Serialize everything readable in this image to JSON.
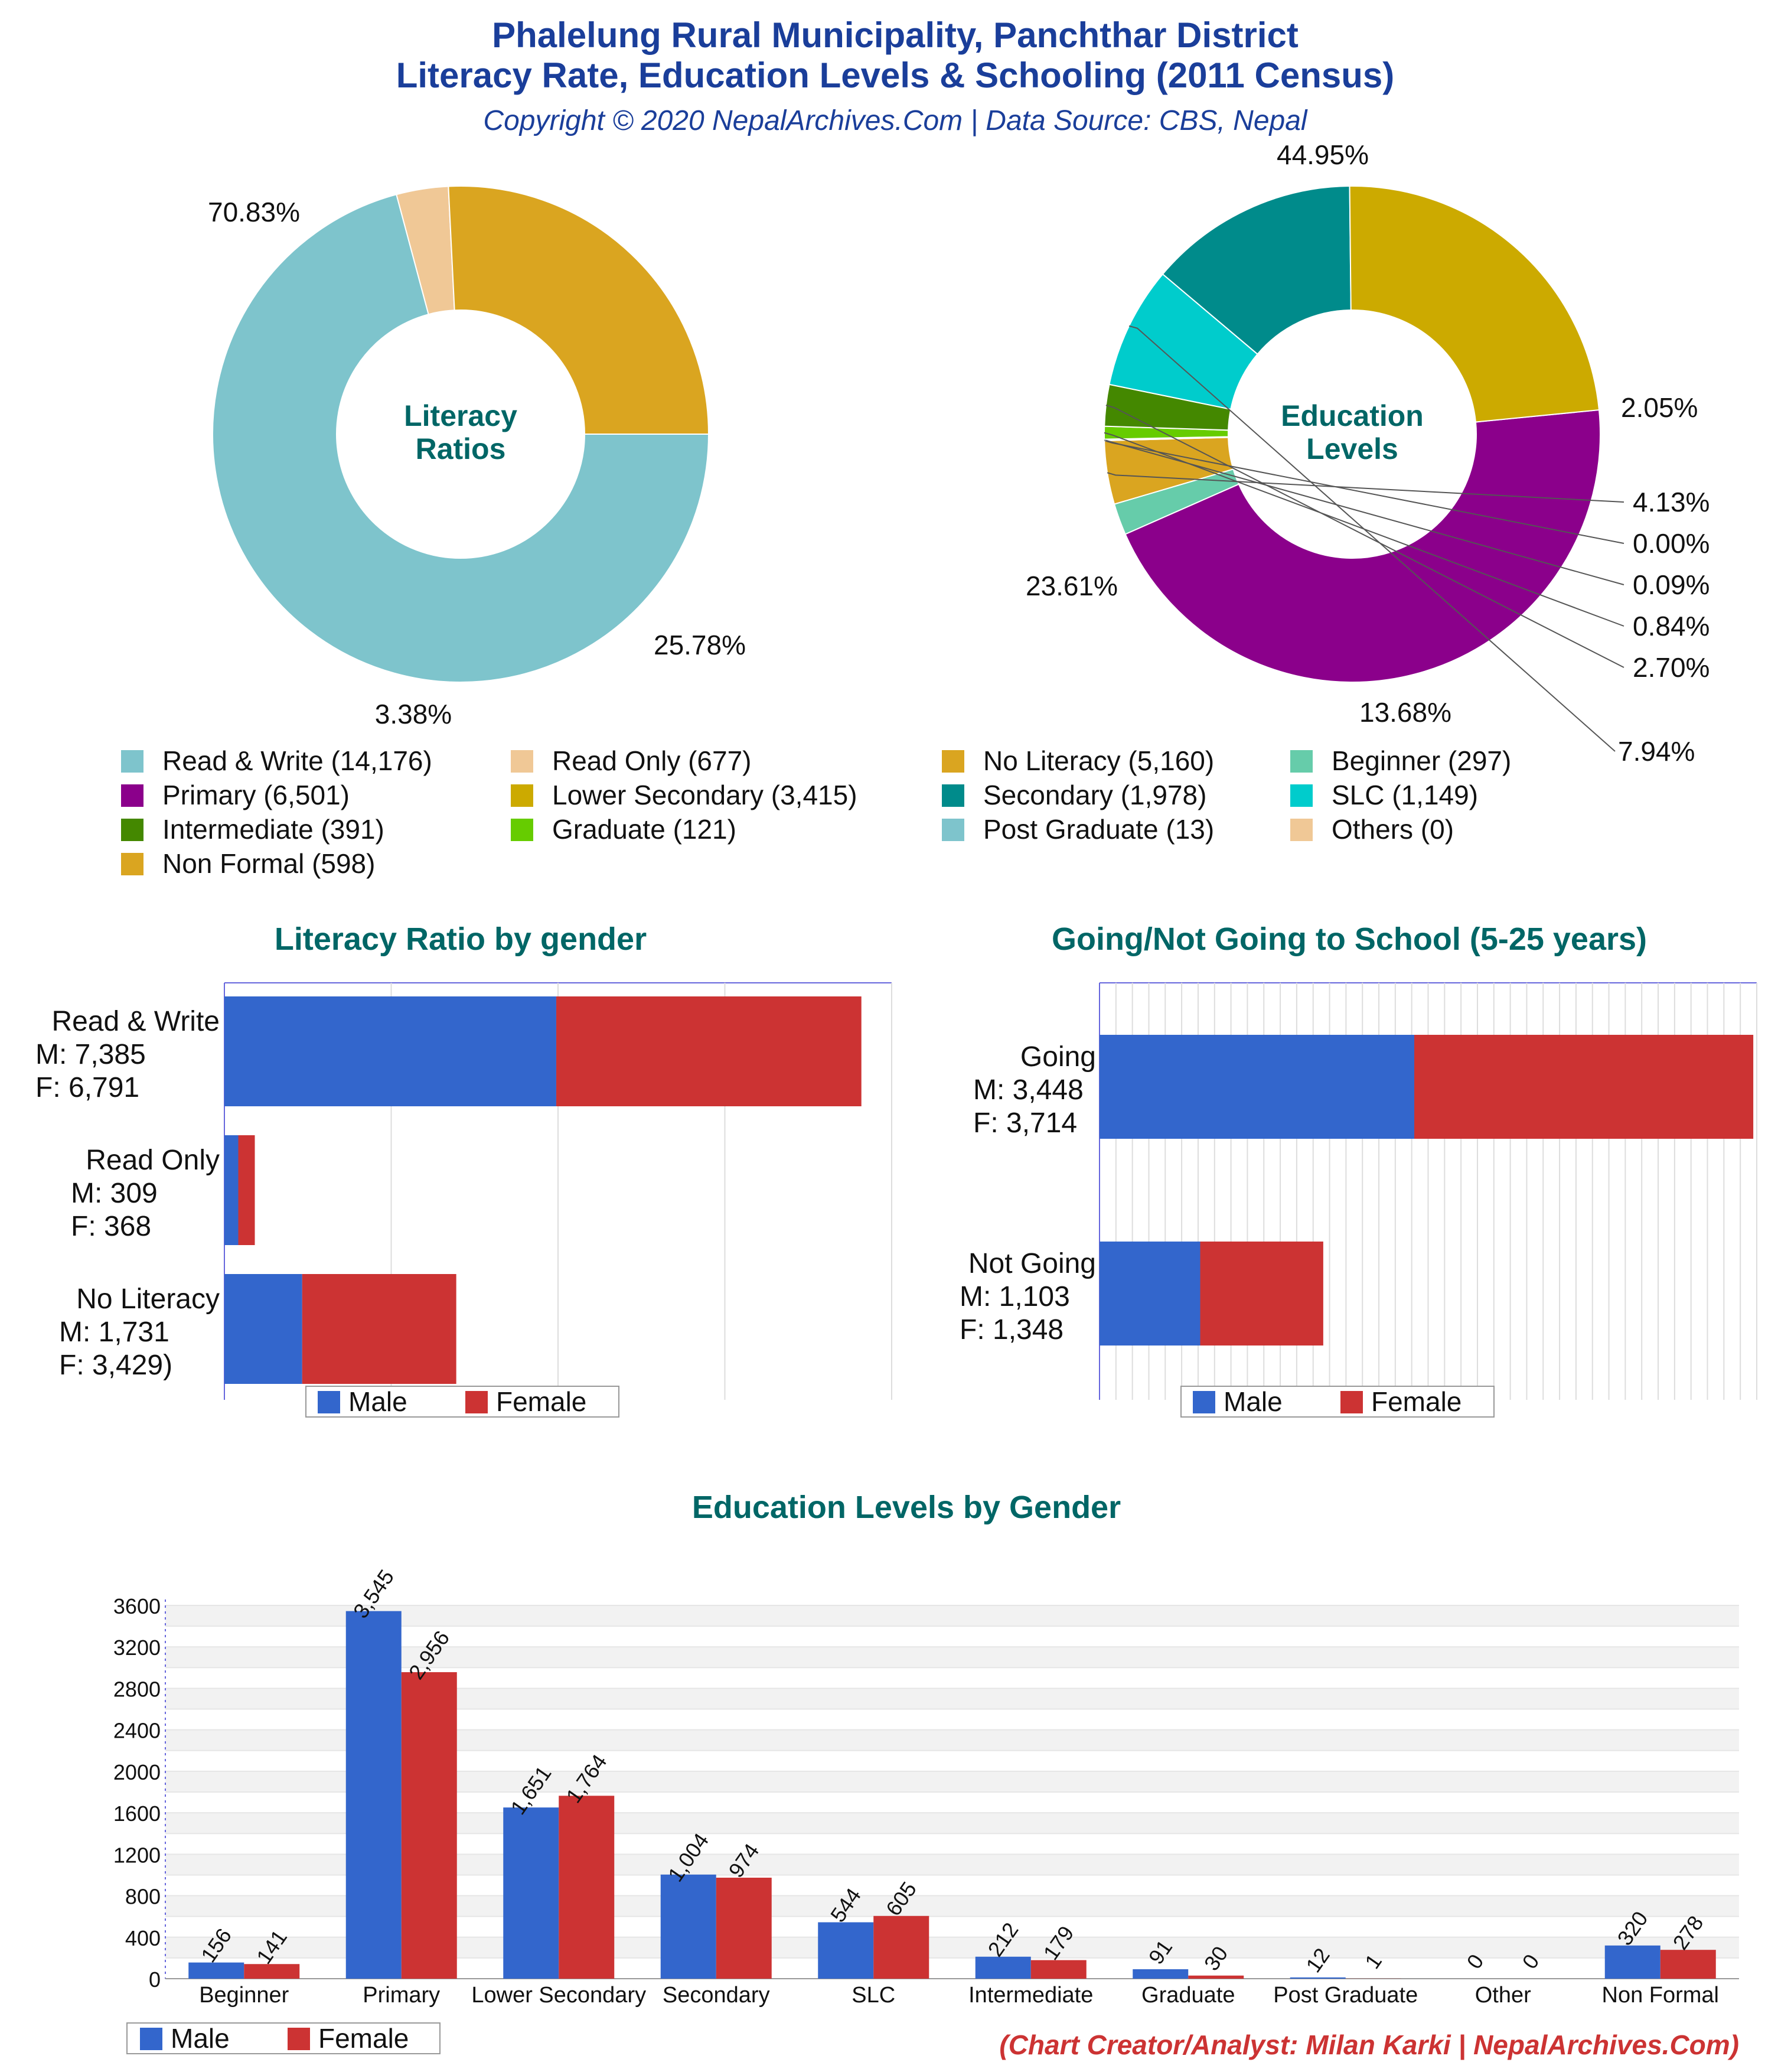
{
  "header": {
    "title_line1": "Phalelung Rural Municipality, Panchthar District",
    "title_line2": "Literacy Rate, Education Levels & Schooling (2011 Census)",
    "copyright": "Copyright © 2020 NepalArchives.Com | Data Source: CBS, Nepal"
  },
  "footer": {
    "credit": "(Chart Creator/Analyst: Milan Karki | NepalArchives.Com)"
  },
  "colors": {
    "title": "#1a3e9a",
    "section_title": "#006666",
    "male": "#3366cc",
    "female": "#cc3333",
    "credit": "#cc3333"
  },
  "legend": {
    "items": [
      {
        "label": "Read & Write (14,176)",
        "color": "#7ec4cc"
      },
      {
        "label": "Read Only (677)",
        "color": "#f0c896"
      },
      {
        "label": "No Literacy (5,160)",
        "color": "#daa520"
      },
      {
        "label": "Beginner (297)",
        "color": "#66ccaa"
      },
      {
        "label": "Primary (6,501)",
        "color": "#8b008b"
      },
      {
        "label": "Lower Secondary (3,415)",
        "color": "#ccaa00"
      },
      {
        "label": "Secondary (1,978)",
        "color": "#008b8b"
      },
      {
        "label": "SLC (1,149)",
        "color": "#00cccc"
      },
      {
        "label": "Intermediate (391)",
        "color": "#448800"
      },
      {
        "label": "Graduate (121)",
        "color": "#66cc00"
      },
      {
        "label": "Post Graduate (13)",
        "color": "#7ec4cc"
      },
      {
        "label": "Others (0)",
        "color": "#f0c896"
      },
      {
        "label": "Non Formal (598)",
        "color": "#daa520"
      }
    ]
  },
  "chart_data": [
    {
      "type": "pie",
      "variant": "donut",
      "center_label": [
        "Literacy",
        "Ratios"
      ],
      "slices": [
        {
          "name": "Read & Write",
          "value": 14176,
          "pct_label": "70.83%",
          "color": "#7ec4cc"
        },
        {
          "name": "Read Only",
          "value": 677,
          "pct_label": "3.38%",
          "color": "#f0c896"
        },
        {
          "name": "No Literacy",
          "value": 5160,
          "pct_label": "25.78%",
          "color": "#daa520"
        }
      ]
    },
    {
      "type": "pie",
      "variant": "donut",
      "center_label": [
        "Education",
        "Levels"
      ],
      "slices": [
        {
          "name": "Primary",
          "value": 6501,
          "pct_label": "44.95%",
          "color": "#8b008b"
        },
        {
          "name": "Beginner",
          "value": 297,
          "pct_label": "2.05%",
          "color": "#66ccaa"
        },
        {
          "name": "Non Formal",
          "value": 598,
          "pct_label": "4.13%",
          "color": "#daa520"
        },
        {
          "name": "Others",
          "value": 0,
          "pct_label": "0.00%",
          "color": "#f0c896"
        },
        {
          "name": "Post Graduate",
          "value": 13,
          "pct_label": "0.09%",
          "color": "#7ec4cc"
        },
        {
          "name": "Graduate",
          "value": 121,
          "pct_label": "0.84%",
          "color": "#66cc00"
        },
        {
          "name": "Intermediate",
          "value": 391,
          "pct_label": "2.70%",
          "color": "#448800"
        },
        {
          "name": "SLC",
          "value": 1149,
          "pct_label": "7.94%",
          "color": "#00cccc"
        },
        {
          "name": "Secondary",
          "value": 1978,
          "pct_label": "13.68%",
          "color": "#008b8b"
        },
        {
          "name": "Lower Secondary",
          "value": 3415,
          "pct_label": "23.61%",
          "color": "#ccaa00"
        }
      ]
    },
    {
      "type": "bar",
      "orientation": "horizontal",
      "stacked": true,
      "title": "Literacy Ratio by gender",
      "categories": [
        "Read & Write",
        "Read Only",
        "No Literacy"
      ],
      "category_labels": [
        [
          "Read & Write",
          "M: 7,385",
          "F: 6,791"
        ],
        [
          "Read Only",
          "M: 309",
          "F: 368"
        ],
        [
          "No Literacy",
          "M: 1,731",
          "F: 3,429)"
        ]
      ],
      "series": [
        {
          "name": "Male",
          "values": [
            7385,
            309,
            1731
          ]
        },
        {
          "name": "Female",
          "values": [
            6791,
            368,
            3429
          ]
        }
      ],
      "xlim": [
        0,
        14850
      ],
      "legend": "bottom"
    },
    {
      "type": "bar",
      "orientation": "horizontal",
      "stacked": true,
      "title": "Going/Not Going to School (5-25 years)",
      "categories": [
        "Going",
        "Not Going"
      ],
      "category_labels": [
        [
          "Going",
          "M: 3,448",
          "F: 3,714"
        ],
        [
          "Not Going",
          "M: 1,103",
          "F: 1,348"
        ]
      ],
      "series": [
        {
          "name": "Male",
          "values": [
            3448,
            1103
          ]
        },
        {
          "name": "Female",
          "values": [
            3714,
            1348
          ]
        }
      ],
      "xlim": [
        0,
        7200
      ],
      "legend": "bottom"
    },
    {
      "type": "bar",
      "orientation": "vertical",
      "title": "Education Levels by Gender",
      "categories": [
        "Beginner",
        "Primary",
        "Lower Secondary",
        "Secondary",
        "SLC",
        "Intermediate",
        "Graduate",
        "Post Graduate",
        "Other",
        "Non Formal"
      ],
      "series": [
        {
          "name": "Male",
          "values": [
            156,
            3545,
            1651,
            1004,
            544,
            212,
            91,
            12,
            0,
            320
          ],
          "value_labels": [
            "156",
            "3,545",
            "1,651",
            "1,004",
            "544",
            "212",
            "91",
            "12",
            "0",
            "320"
          ]
        },
        {
          "name": "Female",
          "values": [
            141,
            2956,
            1764,
            974,
            605,
            179,
            30,
            1,
            0,
            278
          ],
          "value_labels": [
            "141",
            "2,956",
            "1,764",
            "974",
            "605",
            "179",
            "30",
            "1",
            "0",
            "278"
          ]
        }
      ],
      "yticks": [
        "0",
        "400",
        "800",
        "1200",
        "1600",
        "2000",
        "2400",
        "2800",
        "3200",
        "3600"
      ],
      "ylim": [
        0,
        3600
      ],
      "legend": "bottom-left"
    }
  ]
}
